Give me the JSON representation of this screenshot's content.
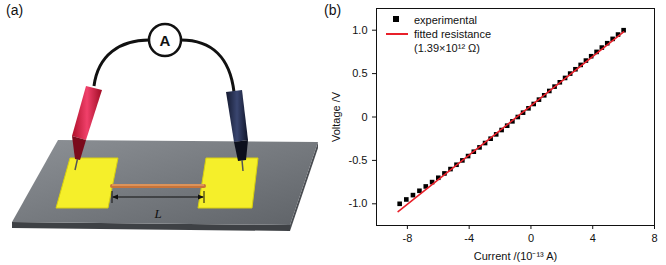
{
  "diagram": {
    "panel_label": "(a)",
    "meter_label": "A",
    "length_label": "L"
  },
  "chart_data": {
    "panel_label": "(b)",
    "type": "scatter",
    "x_label": "Current /(10⁻¹³ A)",
    "y_label": "Voltage /V",
    "xlim": [
      -10,
      8
    ],
    "ylim": [
      -1.25,
      1.25
    ],
    "xticks": [
      -8,
      -4,
      0,
      4,
      8
    ],
    "yticks": [
      {
        "value": -1,
        "label": "-1.0"
      },
      {
        "value": -0.5,
        "label": "-0.5"
      },
      0,
      {
        "value": 0.5,
        "label": "0.5"
      },
      {
        "value": 1,
        "label": "1.0"
      }
    ],
    "grid": false,
    "legend": "upper left",
    "annotations": [
      "(1.39×10¹² Ω)"
    ],
    "series": [
      {
        "name": "experimental",
        "type": "scatter",
        "color": "#000000",
        "marker": "square",
        "x": [
          -8.5,
          -8.07,
          -7.64,
          -7.22,
          -6.81,
          -6.4,
          -6.0,
          -5.6,
          -5.21,
          -4.82,
          -4.44,
          -4.07,
          -3.7,
          -3.33,
          -2.97,
          -2.61,
          -2.25,
          -1.9,
          -1.54,
          -1.2,
          -0.85,
          -0.51,
          -0.16,
          0.18,
          0.52,
          0.86,
          1.19,
          1.53,
          1.87,
          2.21,
          2.54,
          2.88,
          3.22,
          3.56,
          3.9,
          4.25,
          4.59,
          4.94,
          5.29,
          5.64,
          6.0
        ],
        "values": [
          -1.0,
          -0.95,
          -0.9,
          -0.85,
          -0.8,
          -0.75,
          -0.7,
          -0.65,
          -0.6,
          -0.55,
          -0.5,
          -0.45,
          -0.4,
          -0.35,
          -0.3,
          -0.25,
          -0.2,
          -0.15,
          -0.1,
          -0.05,
          0,
          0.05,
          0.1,
          0.15,
          0.2,
          0.25,
          0.3,
          0.35,
          0.4,
          0.45,
          0.5,
          0.55,
          0.6,
          0.65,
          0.7,
          0.75,
          0.8,
          0.85,
          0.9,
          0.95,
          1.0
        ]
      },
      {
        "name": "fitted resistance",
        "type": "line",
        "color": "#e8202a",
        "line_style": "solid",
        "x": [
          -8.6,
          6.0
        ],
        "values": [
          -1.09,
          0.98
        ]
      }
    ]
  }
}
